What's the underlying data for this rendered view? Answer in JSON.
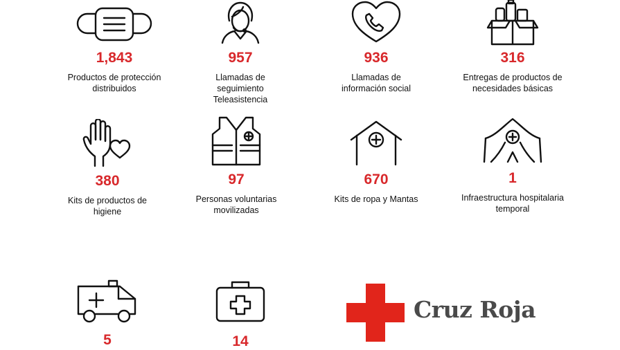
{
  "stats": [
    {
      "value": "1,843",
      "label": "Productos de protección distribuidos",
      "icon": "face-mask-icon"
    },
    {
      "value": "957",
      "label": "Llamadas de seguimiento Teleasistencia",
      "icon": "headset-operator-icon"
    },
    {
      "value": "936",
      "label": "Llamadas de información social",
      "icon": "heart-phone-icon"
    },
    {
      "value": "316",
      "label": "Entregas de productos de necesidades básicas",
      "icon": "supply-box-icon"
    },
    {
      "value": "380",
      "label": "Kits de productos de higiene",
      "icon": "hand-heart-icon"
    },
    {
      "value": "97",
      "label": "Personas voluntarias movilizadas",
      "icon": "volunteer-vest-icon"
    },
    {
      "value": "670",
      "label": "Kits de ropa y Mantas",
      "icon": "shelter-house-icon"
    },
    {
      "value": "1",
      "label": "Infraestructura hospitalaria temporal",
      "icon": "field-tent-icon"
    },
    {
      "value": "5",
      "label": "",
      "icon": "ambulance-icon"
    },
    {
      "value": "14",
      "label": "",
      "icon": "first-aid-kit-icon"
    }
  ],
  "logo": {
    "text": "Cruz Roja",
    "color": "#e1251b"
  },
  "colors": {
    "accent": "#d8282b",
    "icon": "#111111"
  }
}
